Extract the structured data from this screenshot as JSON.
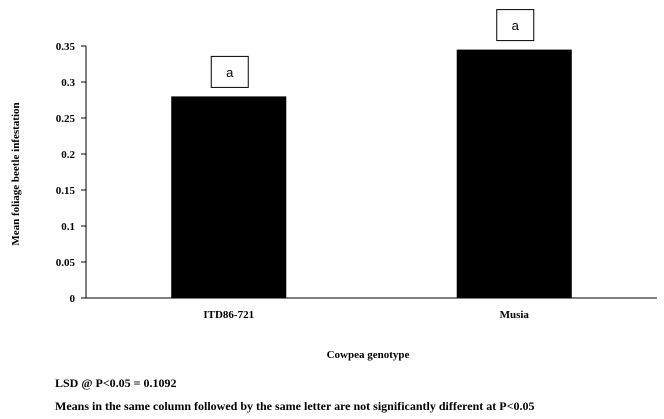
{
  "chart_data": {
    "type": "bar",
    "categories": [
      "ITD86-721",
      "Musia"
    ],
    "values": [
      0.28,
      0.345
    ],
    "significance_letters": [
      "a",
      "a"
    ],
    "xlabel": "Cowpea genotype",
    "ylabel": "Mean foliage beetle infestation",
    "ylim": [
      0,
      0.35
    ],
    "yticks": [
      "0",
      "0.05",
      "0.1",
      "0.15",
      "0.2",
      "0.25",
      "0.3",
      "0.35"
    ],
    "ytick_values": [
      0,
      0.05,
      0.1,
      0.15,
      0.2,
      0.25,
      0.3,
      0.35
    ],
    "grid": false,
    "legend": "none",
    "bar_color": "#000000"
  },
  "notes": {
    "lsd": "LSD @ P<0.05 = 0.1092",
    "means": "Means in the same column followed by the same letter are not significantly different at P<0.05"
  }
}
